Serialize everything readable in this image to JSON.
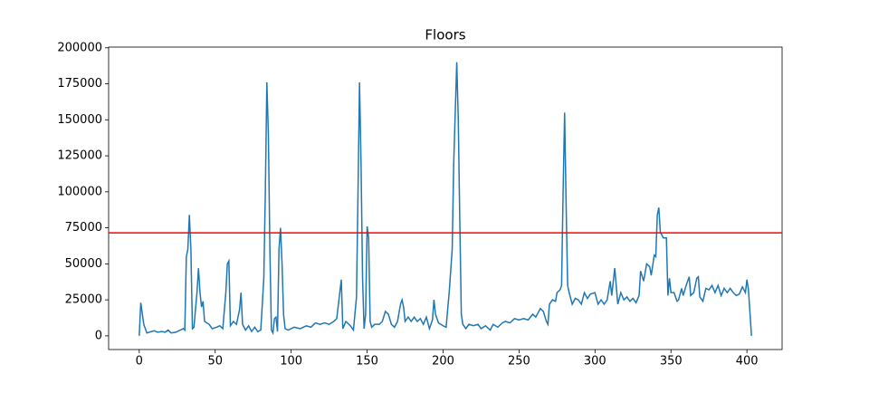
{
  "chart_data": {
    "type": "line",
    "title": "Floors",
    "x": [
      0,
      1,
      3,
      5,
      8,
      10,
      12,
      15,
      17,
      19,
      21,
      24,
      27,
      29,
      30,
      31,
      32,
      33,
      34,
      35,
      36,
      38,
      39,
      40,
      41,
      42,
      43,
      46,
      48,
      51,
      53,
      55,
      57,
      58,
      59,
      60,
      62,
      64,
      66,
      67,
      68,
      70,
      72,
      74,
      76,
      78,
      80,
      82,
      83,
      84,
      85,
      86,
      87,
      88,
      89,
      90,
      91,
      92,
      93,
      94,
      95,
      96,
      98,
      102,
      106,
      110,
      113,
      116,
      119,
      122,
      125,
      128,
      130,
      132,
      133,
      134,
      136,
      139,
      141,
      143,
      144,
      145,
      146,
      147,
      148,
      149,
      150,
      151,
      152,
      153,
      155,
      158,
      160,
      162,
      164,
      166,
      168,
      170,
      172,
      173,
      174,
      175,
      177,
      179,
      181,
      183,
      185,
      187,
      189,
      191,
      193,
      194,
      195,
      197,
      200,
      202,
      204,
      206,
      207,
      209,
      210,
      211,
      212,
      213,
      215,
      217,
      220,
      223,
      225,
      228,
      231,
      233,
      236,
      239,
      241,
      244,
      247,
      250,
      253,
      256,
      259,
      261,
      264,
      266,
      268,
      269,
      270,
      272,
      274,
      275,
      277,
      278,
      279,
      280,
      281,
      282,
      283,
      285,
      287,
      289,
      291,
      293,
      295,
      297,
      300,
      302,
      304,
      306,
      308,
      310,
      311,
      313,
      315,
      317,
      319,
      321,
      323,
      325,
      327,
      329,
      330,
      332,
      334,
      336,
      337,
      339,
      340,
      341,
      342,
      343,
      345,
      347,
      348,
      349,
      350,
      352,
      354,
      355,
      357,
      358,
      360,
      362,
      363,
      365,
      367,
      368,
      369,
      371,
      373,
      375,
      377,
      379,
      381,
      383,
      385,
      387,
      389,
      391,
      393,
      395,
      397,
      399,
      400,
      401,
      403
    ],
    "series": [
      {
        "color": "#1f77b4",
        "values": [
          0,
          23000,
          8000,
          2000,
          3000,
          3500,
          2500,
          3000,
          2500,
          4000,
          2000,
          2500,
          4000,
          5000,
          4000,
          55000,
          60000,
          84000,
          60000,
          5000,
          6000,
          30000,
          47000,
          30000,
          20000,
          24000,
          10000,
          8000,
          5000,
          6000,
          7000,
          5000,
          30000,
          50000,
          52000,
          7000,
          10000,
          8000,
          18000,
          30000,
          8000,
          4000,
          7000,
          3000,
          6000,
          3000,
          4000,
          40000,
          100000,
          176000,
          140000,
          60000,
          4000,
          2000,
          12000,
          13000,
          3000,
          60000,
          75000,
          50000,
          15000,
          5000,
          4000,
          6000,
          5000,
          7000,
          6000,
          9000,
          8000,
          9000,
          8000,
          10000,
          12000,
          30000,
          39000,
          5000,
          10000,
          7000,
          4000,
          27000,
          100000,
          176000,
          120000,
          40000,
          5000,
          15000,
          76000,
          68000,
          10000,
          6000,
          8000,
          8000,
          10000,
          17000,
          15000,
          8000,
          6000,
          10000,
          22000,
          25000,
          20000,
          10000,
          13000,
          10000,
          13000,
          10000,
          12000,
          8000,
          13000,
          5000,
          11000,
          25000,
          15000,
          9000,
          7000,
          6000,
          30000,
          60000,
          120000,
          190000,
          150000,
          80000,
          15000,
          8000,
          5000,
          8000,
          7000,
          8000,
          5000,
          7000,
          4000,
          8000,
          6000,
          9000,
          10000,
          9000,
          12000,
          11000,
          12000,
          11000,
          15000,
          13000,
          19000,
          17000,
          10000,
          8000,
          22000,
          25000,
          24000,
          30000,
          32000,
          35000,
          100000,
          155000,
          90000,
          35000,
          30000,
          22000,
          26000,
          25000,
          22000,
          30000,
          26000,
          29000,
          30000,
          22000,
          25000,
          22000,
          25000,
          38000,
          28000,
          47000,
          22000,
          30000,
          25000,
          27000,
          24000,
          26000,
          23000,
          28000,
          45000,
          38000,
          50000,
          48000,
          42000,
          56000,
          55000,
          84000,
          89000,
          72000,
          68000,
          68000,
          28000,
          40000,
          30000,
          30000,
          24000,
          25000,
          33000,
          28000,
          35000,
          41000,
          28000,
          30000,
          40000,
          41000,
          27000,
          24000,
          33000,
          32000,
          35000,
          30000,
          35000,
          28000,
          33000,
          30000,
          33000,
          30000,
          28000,
          29000,
          34000,
          30000,
          39000,
          32000,
          0
        ]
      }
    ],
    "hline": {
      "value": 71500,
      "color": "#ff0000"
    },
    "xlim": [
      -20.15,
      423.15
    ],
    "ylim": [
      -9500,
      200500
    ],
    "xticks": [
      0,
      50,
      100,
      150,
      200,
      250,
      300,
      350,
      400
    ],
    "yticks": [
      0,
      25000,
      50000,
      75000,
      100000,
      125000,
      150000,
      175000,
      200000
    ],
    "grid": false
  }
}
